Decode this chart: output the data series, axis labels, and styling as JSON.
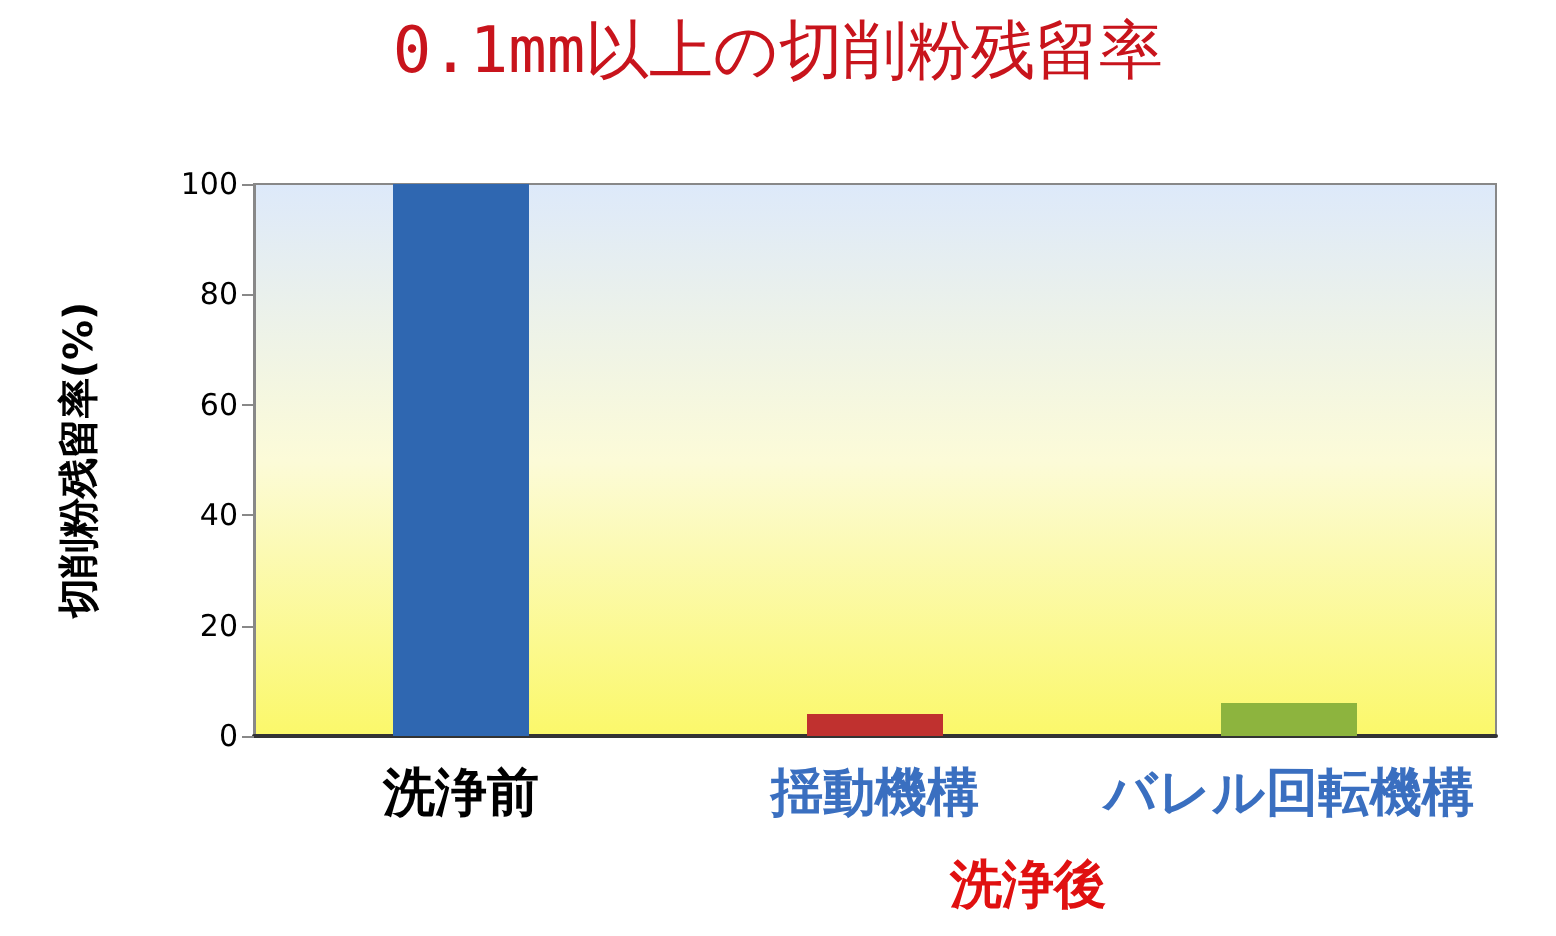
{
  "chart_data": {
    "type": "bar",
    "title": "0.1mm以上の切削粉残留率",
    "ylabel": "切削粉残留率(%)",
    "categories": [
      "洗浄前",
      "揺動機構",
      "バレル回転機構"
    ],
    "values": [
      100,
      4,
      6
    ],
    "colors": [
      "#2f67b1",
      "#c0312f",
      "#8db43e"
    ],
    "ylim": [
      0,
      100
    ],
    "yticks": [
      0,
      20,
      40,
      60,
      80,
      100
    ],
    "annotations": [
      "洗浄後"
    ]
  }
}
